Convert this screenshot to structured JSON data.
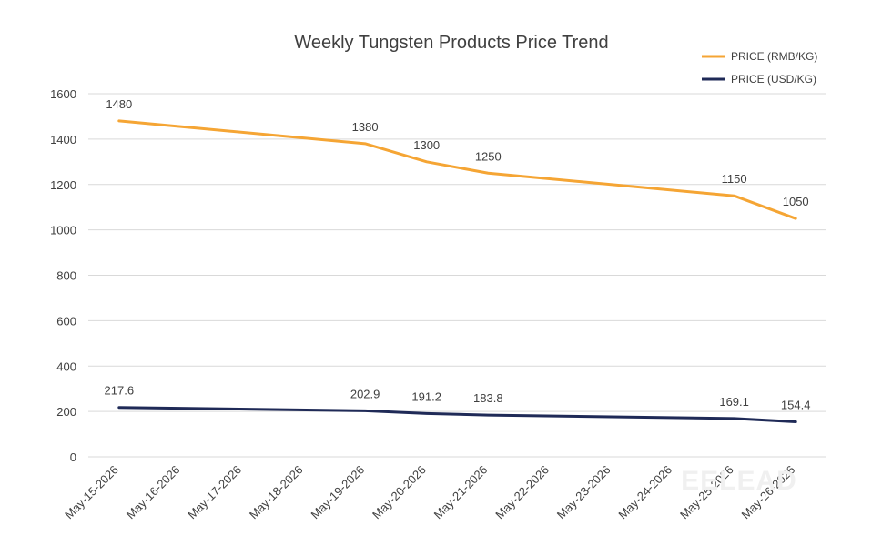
{
  "chart_data": {
    "type": "line",
    "title": "Weekly Tungsten Products Price Trend",
    "xlabel": "",
    "ylabel": "",
    "ylim": [
      0,
      1600
    ],
    "yticks": [
      0,
      200,
      400,
      600,
      800,
      1000,
      1200,
      1400,
      1600
    ],
    "categories": [
      "May-15-2026",
      "May-16-2026",
      "May-17-2026",
      "May-18-2026",
      "May-19-2026",
      "May-20-2026",
      "May-21-2026",
      "May-22-2026",
      "May-23-2026",
      "May-24-2026",
      "May-25-2026",
      "May-26-2026"
    ],
    "series": [
      {
        "name": "PRICE (RMB/KG)",
        "color": "#F5A534",
        "points": [
          {
            "x": "May-15-2026",
            "y": 1480,
            "label": "1480"
          },
          {
            "x": "May-19-2026",
            "y": 1380,
            "label": "1380"
          },
          {
            "x": "May-20-2026",
            "y": 1300,
            "label": "1300"
          },
          {
            "x": "May-21-2026",
            "y": 1250,
            "label": "1250"
          },
          {
            "x": "May-25-2026",
            "y": 1150,
            "label": "1150"
          },
          {
            "x": "May-26-2026",
            "y": 1050,
            "label": "1050"
          }
        ]
      },
      {
        "name": "PRICE (USD/KG)",
        "color": "#1F2A57",
        "points": [
          {
            "x": "May-15-2026",
            "y": 217.6,
            "label": "217.6"
          },
          {
            "x": "May-19-2026",
            "y": 202.9,
            "label": "202.9"
          },
          {
            "x": "May-20-2026",
            "y": 191.2,
            "label": "191.2"
          },
          {
            "x": "May-21-2026",
            "y": 183.8,
            "label": "183.8"
          },
          {
            "x": "May-25-2026",
            "y": 169.1,
            "label": "169.1"
          },
          {
            "x": "May-26-2026",
            "y": 154.4,
            "label": "154.4"
          }
        ]
      }
    ],
    "legend_position": "top-right",
    "grid": true,
    "watermark": "EELEAD"
  }
}
